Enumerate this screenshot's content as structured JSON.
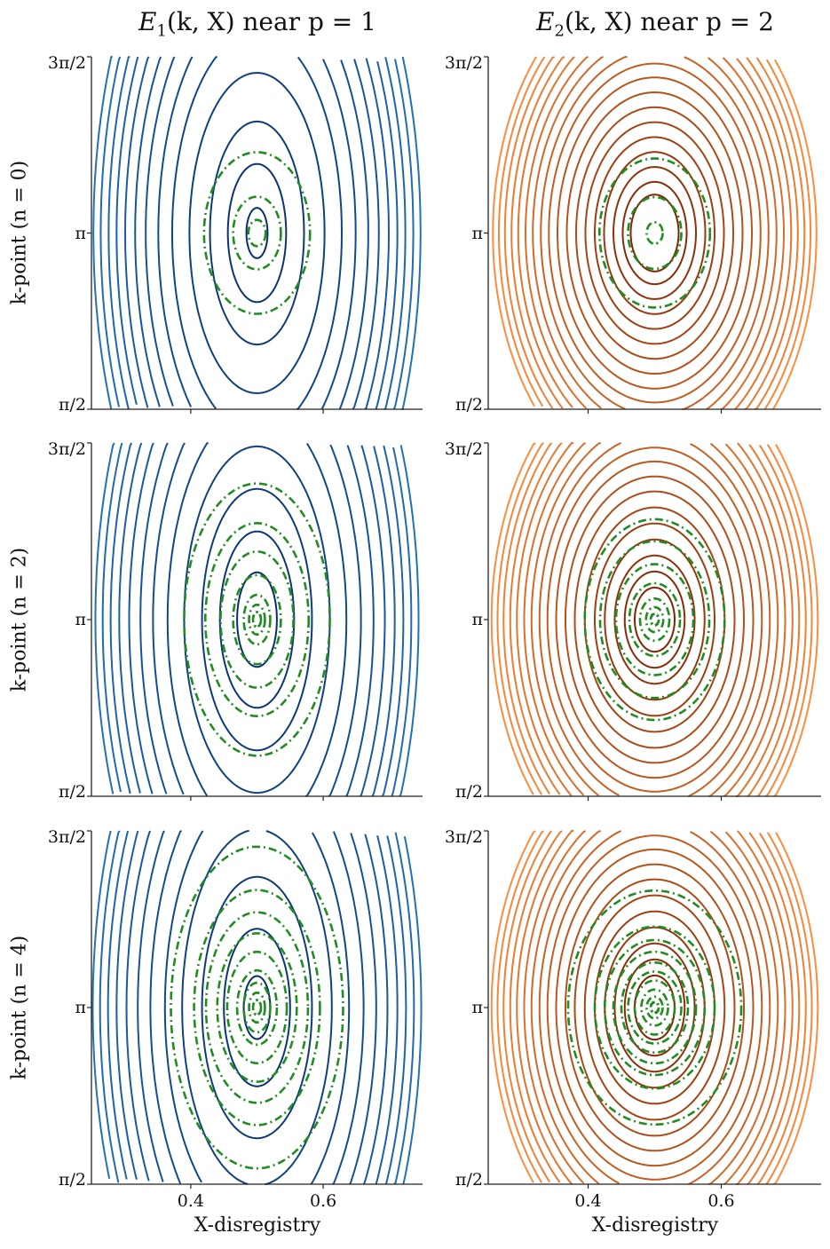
{
  "chart_data": [
    {
      "type": "contour",
      "row": 0,
      "col": 0,
      "title": "E_1(k, X) near p = 1",
      "ylabel": "k-point (n = 0)",
      "xlabel": "",
      "xlim": [
        0.25,
        0.75
      ],
      "ylim": [
        "π/2",
        "3π/2"
      ],
      "center": [
        0.5,
        "π"
      ],
      "contour_halfwidths": [
        0.016,
        0.044,
        0.071,
        0.102,
        0.128,
        0.149,
        0.168,
        0.184,
        0.199,
        0.212,
        0.224,
        0.236,
        0.247
      ],
      "contour_aspect": 14,
      "dashed_halfwidths": [
        0.013,
        0.036,
        0.08
      ],
      "dashed_aspect": 9,
      "palette": [
        "#08306b",
        "#2171b5"
      ]
    },
    {
      "type": "contour",
      "row": 0,
      "col": 1,
      "title": "E_2(k, X) near p = 2",
      "ylabel": "",
      "xlabel": "",
      "xlim": [
        0.25,
        0.75
      ],
      "ylim": [
        "π/2",
        "3π/2"
      ],
      "center": [
        0.5,
        "π"
      ],
      "contour_halfwidths": [
        0.036,
        0.048,
        0.062,
        0.076,
        0.09,
        0.104,
        0.118,
        0.132,
        0.146,
        0.159,
        0.171,
        0.183,
        0.194,
        0.205,
        0.215,
        0.225,
        0.234,
        0.243
      ],
      "contour_aspect": 9.5,
      "dashed_halfwidths": [
        0.012,
        0.04,
        0.083
      ],
      "dashed_aspect": 8,
      "palette": [
        "#7f2704",
        "#fd8d3c"
      ]
    },
    {
      "type": "contour",
      "row": 1,
      "col": 0,
      "title": "",
      "ylabel": "k-point (n = 2)",
      "xlabel": "",
      "xlim": [
        0.25,
        0.75
      ],
      "ylim": [
        "π/2",
        "3π/2"
      ],
      "center": [
        0.5,
        "π"
      ],
      "contour_halfwidths": [
        0.03,
        0.056,
        0.083,
        0.11,
        0.135,
        0.157,
        0.176,
        0.193,
        0.208,
        0.221,
        0.233,
        0.244
      ],
      "contour_aspect": 14,
      "dashed_halfwidths": [
        0.006,
        0.012,
        0.02,
        0.036,
        0.055,
        0.078,
        0.11
      ],
      "dashed_aspect": 11,
      "palette": [
        "#08306b",
        "#2171b5"
      ]
    },
    {
      "type": "contour",
      "row": 1,
      "col": 1,
      "title": "",
      "ylabel": "",
      "xlabel": "",
      "xlim": [
        0.25,
        0.75
      ],
      "ylim": [
        "π/2",
        "3π/2"
      ],
      "center": [
        0.5,
        "π"
      ],
      "contour_halfwidths": [
        0.03,
        0.045,
        0.06,
        0.075,
        0.09,
        0.105,
        0.12,
        0.134,
        0.148,
        0.161,
        0.173,
        0.185,
        0.196,
        0.207,
        0.217,
        0.227,
        0.236,
        0.245
      ],
      "contour_aspect": 9.5,
      "dashed_halfwidths": [
        0.006,
        0.013,
        0.022,
        0.038,
        0.058,
        0.082,
        0.105
      ],
      "dashed_aspect": 8.5,
      "palette": [
        "#7f2704",
        "#fd8d3c"
      ]
    },
    {
      "type": "contour",
      "row": 2,
      "col": 0,
      "title": "",
      "ylabel": "k-point (n = 4)",
      "xlabel": "X-disregistry",
      "xlim": [
        0.25,
        0.75
      ],
      "ylim": [
        "π/2",
        "3π/2"
      ],
      "center": [
        0.5,
        "π"
      ],
      "xticks": [
        "0.4",
        "0.6"
      ],
      "contour_halfwidths": [
        0.02,
        0.05,
        0.083,
        0.113,
        0.139,
        0.161,
        0.18,
        0.197,
        0.212,
        0.225,
        0.237,
        0.248
      ],
      "contour_aspect": 14,
      "dashed_halfwidths": [
        0.006,
        0.012,
        0.02,
        0.03,
        0.045,
        0.06,
        0.077,
        0.095,
        0.13
      ],
      "dashed_aspect": 11,
      "palette": [
        "#08306b",
        "#2171b5"
      ]
    },
    {
      "type": "contour",
      "row": 2,
      "col": 1,
      "title": "",
      "ylabel": "",
      "xlabel": "X-disregistry",
      "xlim": [
        0.25,
        0.75
      ],
      "ylim": [
        "π/2",
        "3π/2"
      ],
      "center": [
        0.5,
        "π"
      ],
      "xticks": [
        "0.4",
        "0.6"
      ],
      "contour_halfwidths": [
        0.03,
        0.045,
        0.06,
        0.075,
        0.09,
        0.105,
        0.12,
        0.134,
        0.148,
        0.161,
        0.173,
        0.185,
        0.196,
        0.207,
        0.217,
        0.227,
        0.236,
        0.245
      ],
      "contour_aspect": 9.5,
      "dashed_halfwidths": [
        0.006,
        0.012,
        0.02,
        0.03,
        0.04,
        0.05,
        0.062,
        0.075,
        0.09,
        0.13
      ],
      "dashed_aspect": 8,
      "palette": [
        "#7f2704",
        "#fd8d3c"
      ]
    }
  ],
  "titles": {
    "left": "E",
    "left_sub": "1",
    "left_rest": "(k, X) near p = 1",
    "right": "E",
    "right_sub": "2",
    "right_rest": "(k, X) near p = 2"
  },
  "ylabels": [
    "k-point (n = 0)",
    "k-point (n = 2)",
    "k-point (n = 4)"
  ],
  "xlabel": "X-disregistry",
  "yticks": [
    "3π/2",
    "π",
    "π/2"
  ],
  "xticks": [
    "0.4",
    "0.6"
  ],
  "dashed_color": "#228b22"
}
